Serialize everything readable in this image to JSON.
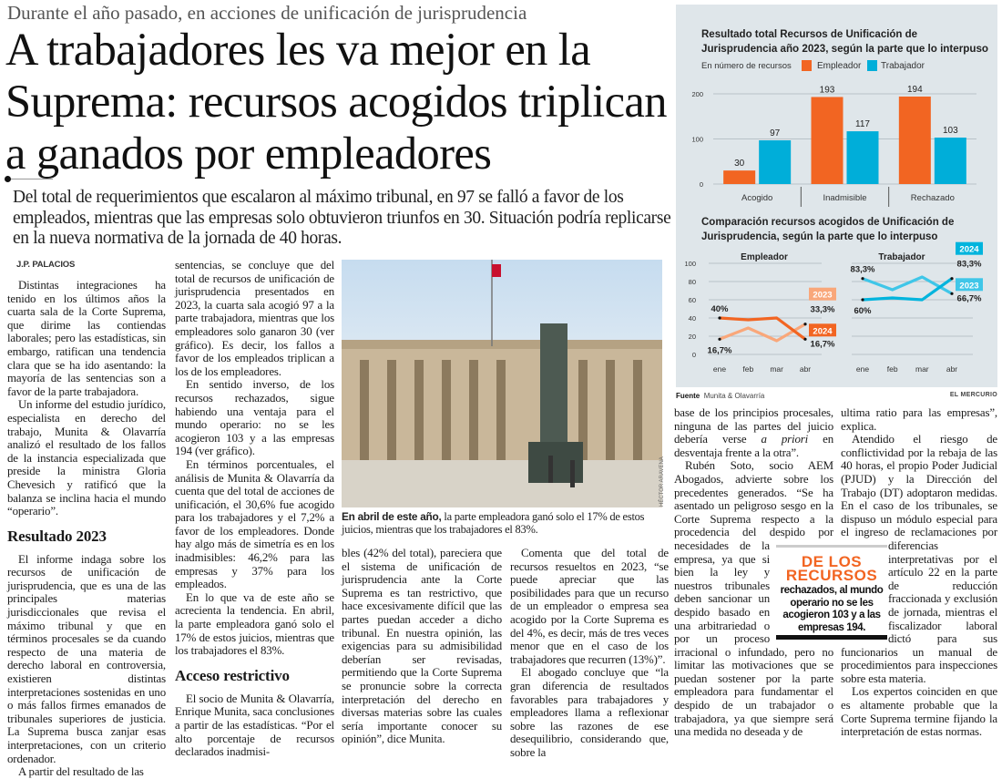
{
  "article": {
    "kicker": "Durante el año pasado, en acciones de unificación de jurisprudencia",
    "headline": "A trabajadores les va mejor en la Suprema: recursos acogidos triplican a ganados por empleadores",
    "deck": "Del total de requerimientos que escalaron al máximo tribunal, en 97 se falló a favor de los empleados, mientras que las empresas solo obtuvieron triunfos en 30. Situación podría replicarse en la nueva normativa de la jornada de 40 horas.",
    "byline": "J.P. PALACIOS",
    "col1": {
      "p1": "Distintas integraciones ha tenido en los últimos años la cuarta sala de la Corte Suprema, que dirime las contiendas laborales; pero las estadísticas, sin embargo, ratifican una tendencia clara que se ha ido asentando: la mayoría de las sentencias son a favor de la parte trabajadora.",
      "p2": "Un informe del estudio jurídico, especialista en derecho del trabajo, Munita & Olavarría analizó el resultado de los fallos de la instancia especializada que preside la ministra Gloria Chevesich y ratificó que la balanza se inclina hacia el mundo “operario”.",
      "h1": "Resultado 2023",
      "p3": "El informe indaga sobre los recursos de unificación de jurisprudencia, que es una de las principales materias jurisdiccionales que revisa el máximo tribunal y que en términos procesales se da cuando respecto de una materia de derecho laboral en controversia, existieren distintas interpretaciones sostenidas en uno o más fallos firmes emanados de tribunales superiores de justicia. La Suprema busca zanjar esas interpretaciones, con un criterio ordenador.",
      "p4": "A partir del resultado de las"
    },
    "col2": {
      "p1": "sentencias, se concluye que del total de recursos de unificación de jurisprudencia presentados en 2023, la cuarta sala acogió 97 a la parte trabajadora, mientras que los empleadores solo ganaron 30 (ver gráfico). Es decir, los fallos a favor de los empleados triplican a los de los empleadores.",
      "p2": "En sentido inverso, de los recursos rechazados, sigue habiendo una ventaja para el mundo operario: no se les acogieron 103 y a las empresas 194 (ver gráfico).",
      "p3": "En términos porcentuales, el análisis de Munita & Olavarría da cuenta que del total de acciones de unificación, el 30,6% fue acogido para los trabajadores y el 7,2% a favor de los empleadores. Donde hay algo más de simetría es en los inadmisibles: 46,2% para las empresas y 37% para los empleados.",
      "p4": "En lo que va de este año se acrecienta la tendencia. En abril, la parte empleadora ganó solo el 17% de estos juicios, mientras que los trabajadores el 83%.",
      "h1": "Acceso restrictivo",
      "p5": "El socio de Munita & Olavarría, Enrique Munita, saca conclusiones a partir de las estadísticas. “Por el alto porcentaje de recursos declarados inadmisi-"
    },
    "col3": {
      "p1": "bles (42% del total), pareciera que el sistema de unificación de jurisprudencia ante la Corte Suprema es tan restrictivo, que hace excesivamente difícil que las partes puedan acceder a dicho tribunal. En nuestra opinión, las exigencias para su admisibilidad deberían ser revisadas, permitiendo que la Corte Suprema se pronuncie sobre la correcta interpretación del derecho en diversas materias sobre las cuales sería importante conocer su opinión”, dice Munita."
    },
    "col4": {
      "p1": "Comenta que del total de recursos resueltos en 2023, “se puede apreciar que las posibilidades para que un recurso de un empleador o empresa sea acogido por la Corte Suprema es del 4%, es decir, más de tres veces menor que en el caso de los trabajadores que recurren (13%)”.",
      "p2": "El abogado concluye que “la gran diferencia de resultados favorables para trabajadores y empleadores llama a reflexionar sobre las razones de ese desequilibrio, considerando que, sobre la"
    },
    "col5": {
      "p1a": "base de los principios procesales, ninguna de las partes del juicio debería verse ",
      "p1_italic": "a priori",
      "p1b": " en desventaja frente a la otra”.",
      "p2": "Rubén Soto, socio AEM Abogados, advierte sobre los precedentes generados. “Se ha asentado un peligroso sesgo en la Corte Suprema respecto a la procedencia del despido por necesidades de la empresa, ya que si bien la ley y nuestros tribunales deben sancionar un despido basado en una arbitrariedad o por un proceso irracional o infundado, pero no limitar las motivaciones que se puedan sostener por la parte empleadora para fundamentar el despido de un trabajador o trabajadora, ya que siempre será una medida no deseada y de"
    },
    "col6": {
      "p1": "ultima ratio para las empresas”, explica.",
      "p2": "Atendido el riesgo de conflictividad por la rebaja de las 40 horas, el propio Poder Judicial (PJUD) y la Dirección del Trabajo (DT) adoptaron medidas. En el caso de los tribunales, se dispuso un módulo especial para el ingreso de reclamaciones por diferencias interpretativas por el artículo 22 en la parte de reducción fraccionada y exclusión de jornada, mientras el fiscalizador laboral dictó para sus funcionarios un manual de procedimientos para inspecciones sobre esta materia.",
      "p3": "Los expertos coinciden en que es altamente probable que la Corte Suprema termine fijando la interpretación de estas normas."
    },
    "photo": {
      "caption_bold": "En abril de este año,",
      "caption": " la parte empleadora ganó solo el 17% de estos juicios, mientras que los trabajadores el 83%.",
      "credit": "HÉCTOR ARAVENA"
    },
    "pullquote": {
      "title": "DE LOS RECURSOS",
      "text": "rechazados, al mundo operario no se les acogieron 103 y a las empresas 194."
    },
    "source_label": "Fuente",
    "source": "Munita & Olavarría",
    "brand": "EL MERCURIO"
  },
  "colors": {
    "empleador": "#f26522",
    "empleador_light": "#f9a77a",
    "trabajador": "#00aed9",
    "trabajador_light": "#3fc6e8",
    "panel": "#dfe6ea"
  },
  "chart_data": [
    {
      "type": "bar",
      "title": "Resultado total Recursos de Unificación de Jurisprudencia año 2023, según la parte que lo interpuso",
      "subtitle": "En número de recursos",
      "categories": [
        "Acogido",
        "Inadmisible",
        "Rechazado"
      ],
      "series": [
        {
          "name": "Empleador",
          "values": [
            30,
            193,
            194
          ]
        },
        {
          "name": "Trabajador",
          "values": [
            97,
            117,
            103
          ]
        }
      ],
      "yticks": [
        0,
        100,
        200
      ],
      "ylim": [
        0,
        200
      ],
      "legend": "top"
    },
    {
      "type": "line",
      "title": "Comparación recursos acogidos de Unificación de Jurisprudencia, según la parte que lo interpuso",
      "x": [
        "ene",
        "feb",
        "mar",
        "abr"
      ],
      "yticks": [
        0,
        20,
        40,
        60,
        80,
        100
      ],
      "ylim": [
        0,
        100
      ],
      "panels": [
        {
          "name": "Empleador",
          "series": [
            {
              "name": "2023",
              "values": [
                16.7,
                29,
                15,
                33.3
              ],
              "start_label": "16,7%",
              "end_label": "33,3%"
            },
            {
              "name": "2024",
              "values": [
                40,
                38,
                40,
                16.7
              ],
              "start_label": "40%",
              "end_label": "16,7%"
            }
          ]
        },
        {
          "name": "Trabajador",
          "series": [
            {
              "name": "2023",
              "values": [
                83.3,
                71,
                85,
                66.7
              ],
              "start_label": "83,3%",
              "end_label": "66,7%"
            },
            {
              "name": "2024",
              "values": [
                60,
                62,
                60,
                83.3
              ],
              "start_label": "60%",
              "end_label": "83,3%"
            }
          ]
        }
      ]
    }
  ]
}
